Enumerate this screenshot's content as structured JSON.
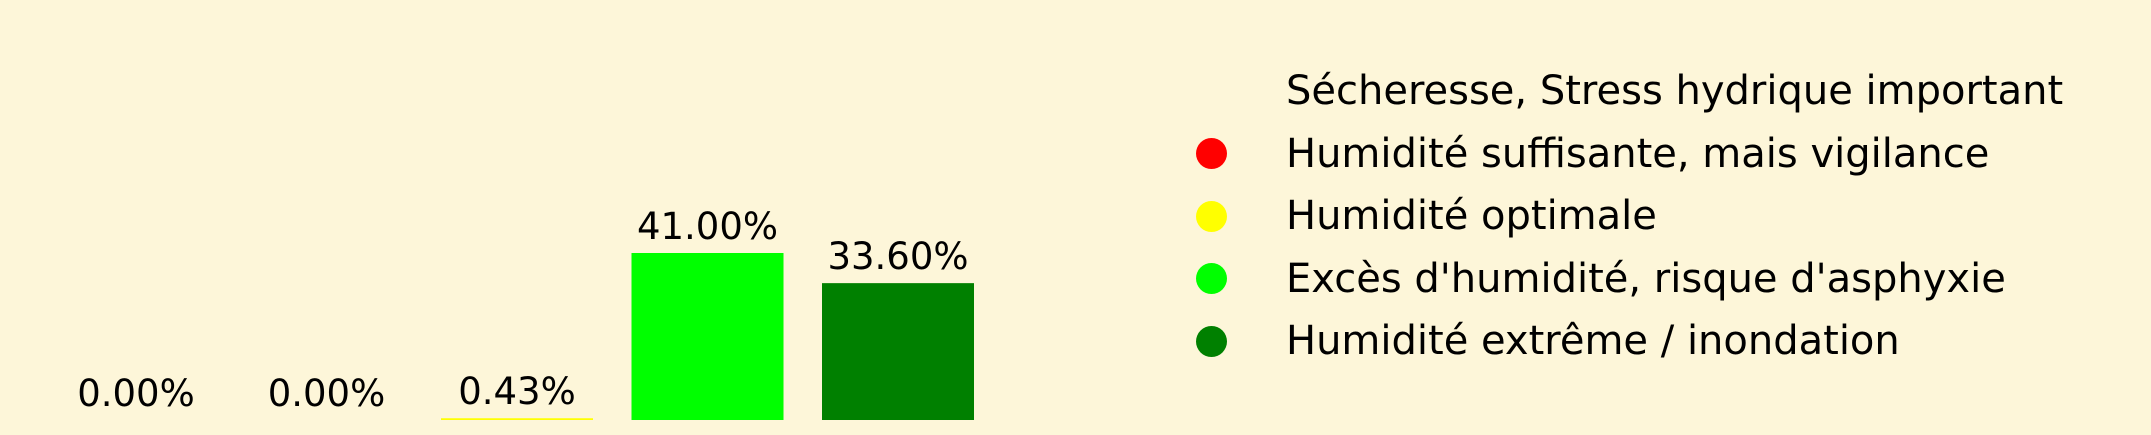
{
  "chart_data": {
    "type": "bar",
    "categories": [
      "Sécheresse, Stress hydrique important",
      "Humidité suffisante, mais vigilance",
      "Humidité optimale",
      "Excès d'humidité, risque d'asphyxie",
      "Humidité extrême / inondation"
    ],
    "values": [
      0.0,
      0.0,
      0.43,
      41.0,
      33.6
    ],
    "value_labels": [
      "0.00%",
      "0.00%",
      "0.43%",
      "41.00%",
      "33.60%"
    ],
    "colors": [
      "#ff0000",
      "#ff0000",
      "#ffff00",
      "#00ff00",
      "#008000"
    ],
    "ylim": [
      0,
      41
    ],
    "grid": false,
    "legend_placement": "right",
    "legend": [
      {
        "label": "Sécheresse, Stress hydrique important",
        "color": "#fdf6d9"
      },
      {
        "label": "Humidité suffisante, mais vigilance",
        "color": "#ff0000"
      },
      {
        "label": "Humidité optimale",
        "color": "#ffff00"
      },
      {
        "label": "Excès d'humidité, risque d'asphyxie",
        "color": "#00ff00"
      },
      {
        "label": "Humidité extrême / inondation",
        "color": "#008000"
      }
    ]
  },
  "background_color": "#fdf6d9"
}
